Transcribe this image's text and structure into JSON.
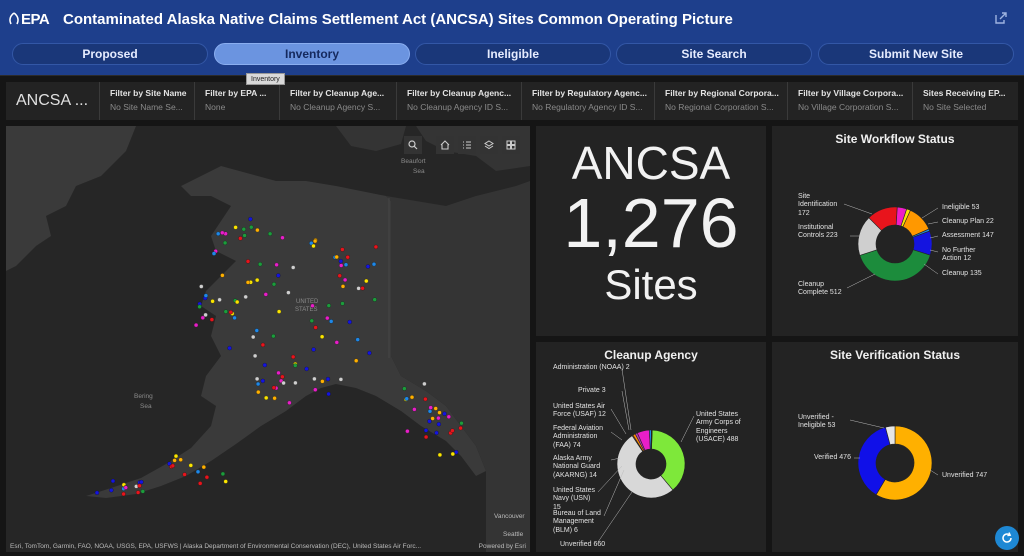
{
  "header": {
    "logo_text": "EPA",
    "title": "Contaminated  Alaska Native Claims Settlement Act (ANCSA) Sites Common Operating Picture"
  },
  "nav": {
    "tabs": [
      "Proposed",
      "Inventory",
      "Ineligible",
      "Site Search",
      "Submit New Site"
    ],
    "active": "Inventory",
    "tooltip": "Inventory"
  },
  "filters": {
    "title": "ANCSA ...",
    "items": [
      {
        "label": "Filter by Site Name",
        "value": "No Site Name Se..."
      },
      {
        "label": "Filter by EPA ...",
        "value": "None"
      },
      {
        "label": "Filter by Cleanup Age...",
        "value": "No Cleanup Agency S..."
      },
      {
        "label": "Filter by Cleanup Agenc...",
        "value": "No Cleanup Agency ID S..."
      },
      {
        "label": "Filter by Regulatory Agenc...",
        "value": "No Regulatory Agency ID S..."
      },
      {
        "label": "Filter by Regional Corpora...",
        "value": "No Regional Corporation S..."
      },
      {
        "label": "Filter by Village Corpora...",
        "value": "No Village Corporation S..."
      },
      {
        "label": "Sites Receiving EP...",
        "value": "No Site Selected"
      }
    ]
  },
  "map": {
    "labels": {
      "beaufort1": "Beaufort",
      "beaufort2": "Sea",
      "bering1": "Bering",
      "bering2": "Sea",
      "us1": "UNITED",
      "us2": "STATES",
      "vancouver": "Vancouver",
      "seattle": "Seattle"
    },
    "attribution": "Esri, TomTom, Garmin, FAO, NOAA, USGS, EPA, USFWS | Alaska Department of Environmental Conservation (DEC), United States Air Forc...",
    "powered_by": "Powered by Esri",
    "tools": [
      "search-icon",
      "home-icon",
      "list-icon",
      "layers-icon",
      "basemap-icon"
    ]
  },
  "count": {
    "top": "ANCSA",
    "number": "1,276",
    "bottom": "Sites"
  },
  "workflow": {
    "title": "Site Workflow Status",
    "slices": [
      {
        "name": "Site Identification",
        "value": 172,
        "color": "#e8141c"
      },
      {
        "name": "Ineligible",
        "value": 53,
        "color": "#ee1fc6"
      },
      {
        "name": "Cleanup Plan",
        "value": 22,
        "color": "#fbe500"
      },
      {
        "name": "Assessment",
        "value": 147,
        "color": "#ff9800"
      },
      {
        "name": "No Further Action",
        "value": 12,
        "color": "#1f8be0"
      },
      {
        "name": "Cleanup",
        "value": 135,
        "color": "#1414e0"
      },
      {
        "name": "Cleanup Complete",
        "value": 512,
        "color": "#1c8c3c"
      },
      {
        "name": "Institutional Controls",
        "value": 223,
        "color": "#cfcfcf"
      }
    ],
    "labels": {
      "site_identification": "Site Identification 172",
      "institutional_controls": "Institutional Controls 223",
      "cleanup_complete": "Cleanup Complete 512",
      "ineligible": "Ineligible 53",
      "cleanup_plan": "Cleanup Plan 22",
      "assessment": "Assessment 147",
      "no_further_action": "No Further Action 12",
      "cleanup": "Cleanup 135"
    }
  },
  "agency": {
    "title": "Cleanup Agency",
    "slices": [
      {
        "name": "United States Army Corps of Engineers (USACE)",
        "value": 488,
        "color": "#7ee83a"
      },
      {
        "name": "Unverified",
        "value": 660,
        "color": "#d8d8d8"
      },
      {
        "name": "Bureau of Land Management (BLM)",
        "value": 6,
        "color": "#a0522d"
      },
      {
        "name": "United States Navy (USN)",
        "value": 15,
        "color": "#ff8c00"
      },
      {
        "name": "Alaska Army National Guard (AKARNG)",
        "value": 14,
        "color": "#b33ab3"
      },
      {
        "name": "Federal Aviation Administration (FAA)",
        "value": 74,
        "color": "#e81ec8"
      },
      {
        "name": "United States Air Force (USAF)",
        "value": 12,
        "color": "#1e88e8"
      },
      {
        "name": "Private",
        "value": 3,
        "color": "#f0e000"
      },
      {
        "name": "National Oceanic and Atmospheric Administration (NOAA)",
        "value": 2,
        "color": "#00c8c8"
      }
    ],
    "labels": {
      "noaa": "Administration (NOAA) 2",
      "private": "Private 3",
      "usaf": "United States Air Force (USAF) 12",
      "faa": "Federal Aviation Administration (FAA) 74",
      "akarng": "Alaska Army National Guard (AKARNG) 14",
      "usn": "United States Navy (USN) 15",
      "blm": "Bureau of Land Management (BLM) 6",
      "unverified": "Unverified 660",
      "usace": "United States Army Corps of Engineers (USACE) 488"
    }
  },
  "verification": {
    "title": "Site Verification Status",
    "slices": [
      {
        "name": "Unverified",
        "value": 747,
        "color": "#ffb000"
      },
      {
        "name": "Verified",
        "value": 476,
        "color": "#1010e8"
      },
      {
        "name": "Unverified - Ineligible",
        "value": 53,
        "color": "#e6e6e6"
      }
    ],
    "labels": {
      "unverified_ineligible": "Unverified - Ineligible 53",
      "verified": "Verified 476",
      "unverified": "Unverified 747"
    }
  }
}
